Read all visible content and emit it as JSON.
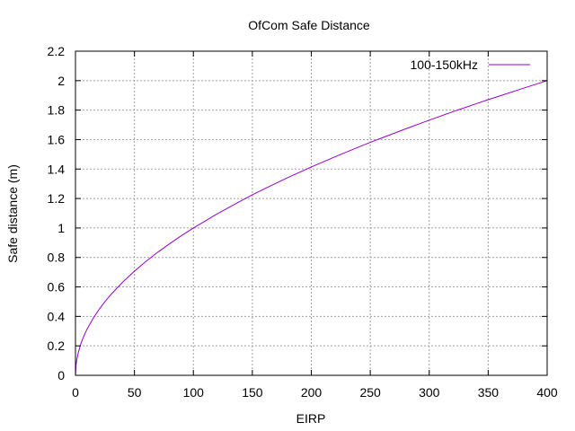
{
  "chart_data": {
    "type": "line",
    "title": "OfCom Safe Distance",
    "xlabel": "EIRP",
    "ylabel": "Safe distance (m)",
    "xlim": [
      0,
      400
    ],
    "ylim": [
      0,
      2.2
    ],
    "xticks": [
      0,
      50,
      100,
      150,
      200,
      250,
      300,
      350,
      400
    ],
    "yticks": [
      0,
      0.2,
      0.4,
      0.6,
      0.8,
      1,
      1.2,
      1.4,
      1.6,
      1.8,
      2,
      2.2
    ],
    "xtick_labels": [
      "0",
      "50",
      "100",
      "150",
      "200",
      "250",
      "300",
      "350",
      "400"
    ],
    "ytick_labels": [
      "0",
      "0.2",
      "0.4",
      "0.6",
      "0.8",
      "1",
      "1.2",
      "1.4",
      "1.6",
      "1.8",
      "2",
      "2.2"
    ],
    "grid": true,
    "legend_position": "top-right",
    "series": [
      {
        "name": "100-150kHz",
        "color": "#9400d3",
        "x": [
          0.5,
          1,
          2,
          4,
          6,
          8,
          10,
          15,
          20,
          25,
          30,
          40,
          50,
          60,
          70,
          80,
          90,
          100,
          120,
          140,
          150,
          160,
          180,
          200,
          220,
          240,
          250,
          260,
          280,
          300,
          320,
          340,
          350,
          360,
          380,
          400
        ],
        "y": [
          0.071,
          0.1,
          0.141,
          0.2,
          0.245,
          0.283,
          0.316,
          0.387,
          0.447,
          0.5,
          0.548,
          0.632,
          0.707,
          0.775,
          0.837,
          0.894,
          0.949,
          1,
          1.095,
          1.183,
          1.225,
          1.265,
          1.342,
          1.414,
          1.483,
          1.549,
          1.581,
          1.612,
          1.673,
          1.732,
          1.789,
          1.844,
          1.871,
          1.897,
          1.949,
          2
        ]
      }
    ]
  }
}
